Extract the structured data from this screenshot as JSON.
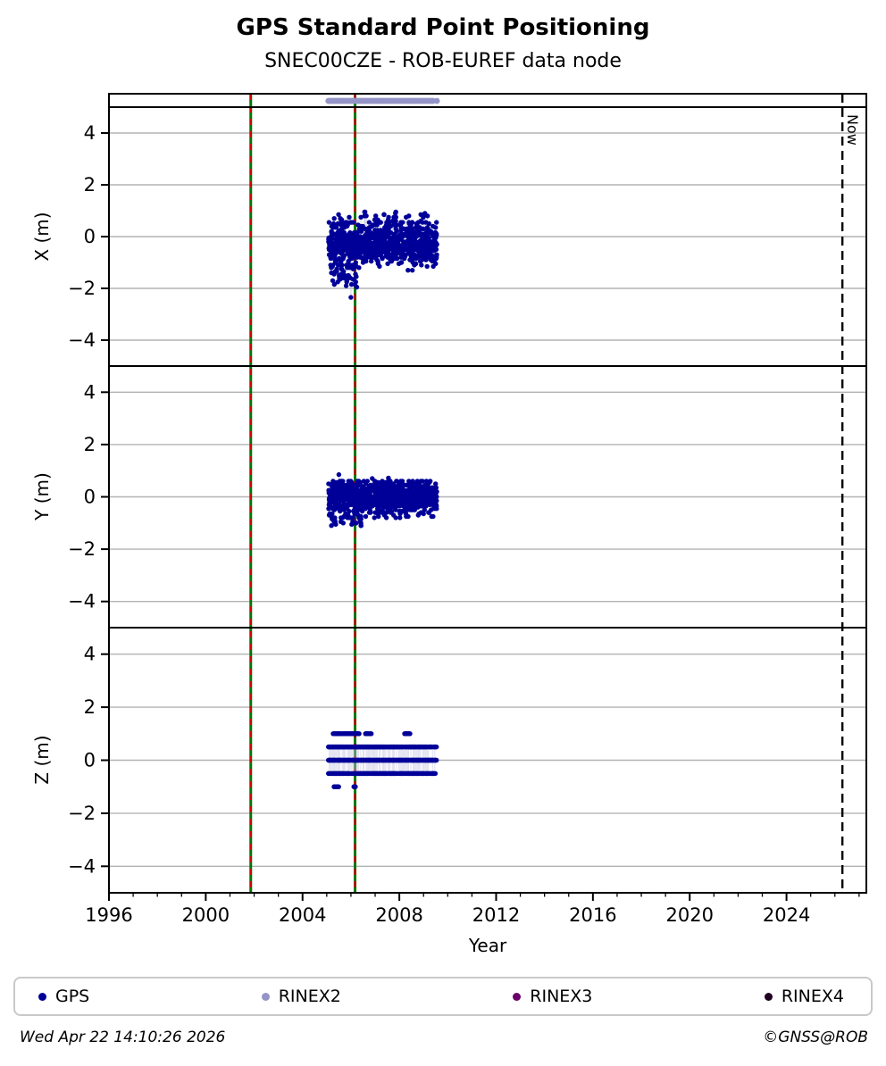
{
  "header": {
    "title": "GPS Standard Point Positioning",
    "subtitle": "SNEC00CZE - ROB-EUREF data node"
  },
  "footer": {
    "timestamp": "Wed Apr 22 14:10:26 2026",
    "copyright": "©GNSS@ROB"
  },
  "legend": {
    "items": [
      {
        "label": "GPS",
        "color": "#000099"
      },
      {
        "label": "RINEX2",
        "color": "#9494c8"
      },
      {
        "label": "RINEX3",
        "color": "#6a006a"
      },
      {
        "label": "RINEX4",
        "color": "#200020"
      }
    ]
  },
  "chart_data": {
    "type": "scatter",
    "xlabel": "Year",
    "xlim": [
      1996,
      2027.3
    ],
    "xticks_major": [
      1996,
      2000,
      2004,
      2008,
      2012,
      2016,
      2020,
      2024
    ],
    "xticks_minor_step": 1,
    "grid": "horizontal-only",
    "colors": {
      "gps": "#000099",
      "rinex2": "#9494c8",
      "grid": "#b3b3b3",
      "event_green": "#007700",
      "event_red": "#d40000",
      "stem": "#c6c6e4",
      "now": "#000000"
    },
    "now_marker": {
      "x": 2026.31,
      "label": "Now"
    },
    "event_lines": [
      {
        "x": 2001.86,
        "style": "green-solid-with-red-dashes"
      },
      {
        "x": 2006.17,
        "style": "green-solid-with-red-dashes"
      }
    ],
    "availability_strip": {
      "series": "RINEX2",
      "x_start": 2005.07,
      "x_end": 2009.42,
      "isolated_x": 2009.55
    },
    "panels": [
      {
        "ylabel": "X (m)",
        "ylim": [
          -5,
          5
        ],
        "yticks": [
          4,
          2,
          0,
          -2,
          -4
        ],
        "clusters": [
          {
            "name": "main-band",
            "x0": 2005.07,
            "x1": 2009.55,
            "n": 980,
            "mean": -0.28,
            "sd": 0.38,
            "ymin": -1.3,
            "ymax": 0.55
          },
          {
            "name": "early-low-tail",
            "x0": 2005.1,
            "x1": 2006.3,
            "n": 50,
            "mean": -1.45,
            "sd": 0.28,
            "ymin": -2.0,
            "ymax": -1.1
          },
          {
            "name": "sparse-top",
            "x0": 2005.2,
            "x1": 2009.2,
            "n": 34,
            "mean": 0.78,
            "sd": 0.14,
            "ymin": 0.55,
            "ymax": 1.05,
            "stem": true,
            "stem_to": -0.2
          },
          {
            "name": "outlier",
            "points": [
              [
                2006.0,
                -2.35
              ]
            ],
            "stem": true,
            "stem_to": -0.5
          }
        ]
      },
      {
        "ylabel": "Y (m)",
        "ylim": [
          -5,
          5
        ],
        "yticks": [
          4,
          2,
          0,
          -2,
          -4
        ],
        "clusters": [
          {
            "name": "main-band",
            "x0": 2005.07,
            "x1": 2009.55,
            "n": 960,
            "mean": 0.0,
            "sd": 0.32,
            "ymin": -0.8,
            "ymax": 0.6
          },
          {
            "name": "early-low-tail",
            "x0": 2005.1,
            "x1": 2006.45,
            "n": 32,
            "mean": -0.88,
            "sd": 0.14,
            "ymin": -1.1,
            "ymax": -0.65
          },
          {
            "name": "sparse-top",
            "points": [
              [
                2005.5,
                0.85
              ],
              [
                2006.88,
                0.7
              ],
              [
                2007.55,
                0.72
              ]
            ],
            "stem": true,
            "stem_to": 0.2
          }
        ]
      },
      {
        "ylabel": "Z (m)",
        "ylim": [
          -5,
          5
        ],
        "yticks": [
          4,
          2,
          0,
          -2,
          -4
        ],
        "rows": [
          {
            "y": 1.0,
            "segments": [
              [
                2005.25,
                2006.35,
                60
              ],
              [
                2006.6,
                2006.85,
                14
              ],
              [
                2008.2,
                2008.45,
                12
              ]
            ]
          },
          {
            "y": 0.5,
            "segments": [
              [
                2005.07,
                2009.55,
                380
              ]
            ]
          },
          {
            "y": 0.0,
            "segments": [
              [
                2005.07,
                2009.55,
                380
              ]
            ]
          },
          {
            "y": -0.5,
            "segments": [
              [
                2005.07,
                2009.5,
                330
              ]
            ]
          },
          {
            "y": -1.0,
            "segments": [
              [
                2005.3,
                2005.5,
                10
              ],
              [
                2006.12,
                2006.2,
                3
              ]
            ]
          }
        ],
        "stem_columns": {
          "x0": 2005.1,
          "x1": 2009.5,
          "from": 0.5,
          "to": -0.5
        }
      }
    ]
  }
}
